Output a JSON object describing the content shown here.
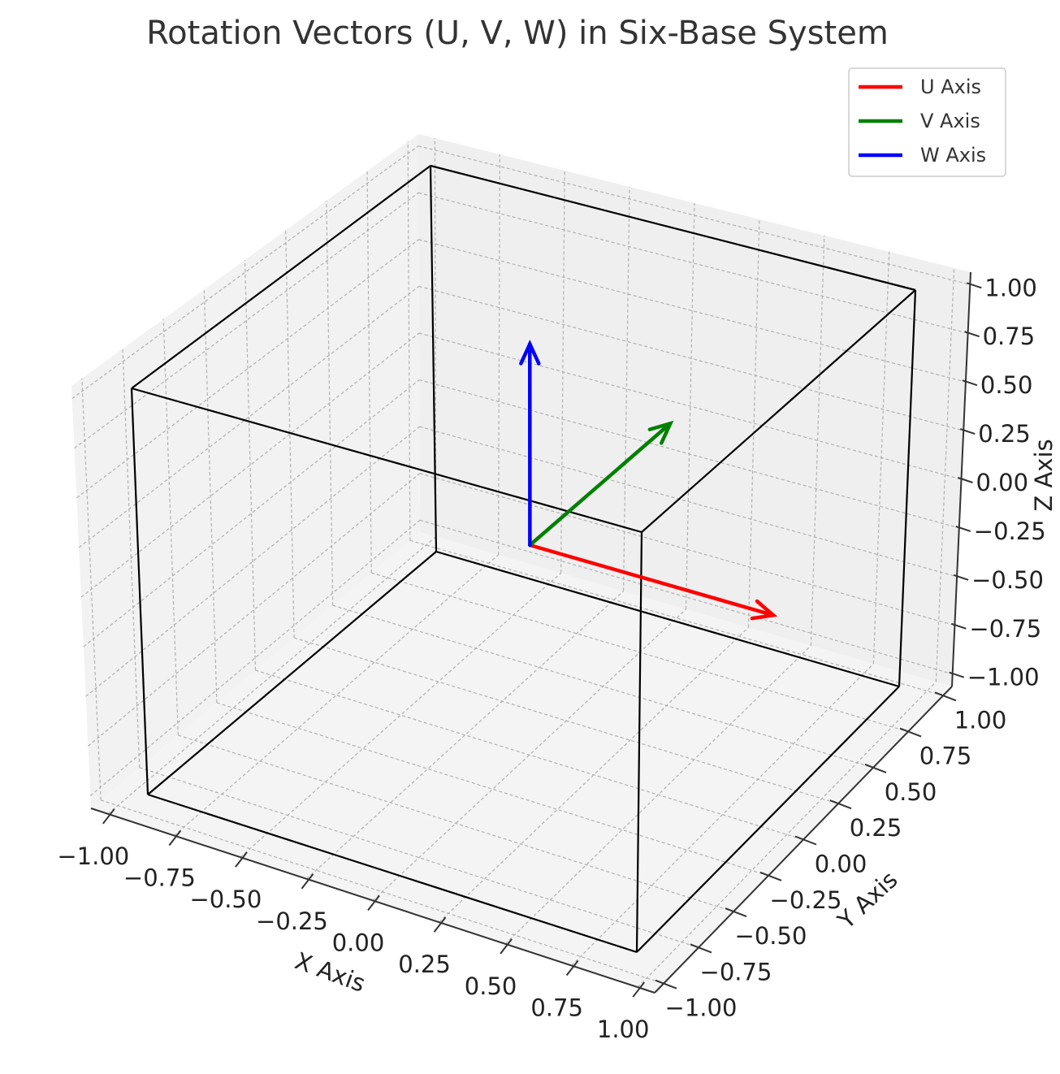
{
  "chart_data": {
    "type": "3d-quiver",
    "title": "Rotation Vectors (U, V, W) in Six-Base System",
    "xlabel": "X Axis",
    "ylabel": "Y Axis",
    "zlabel": "Z Axis",
    "xlim": [
      -1,
      1
    ],
    "ylim": [
      -1,
      1
    ],
    "zlim": [
      -1,
      1
    ],
    "x_ticks": [
      "−1.00",
      "−0.75",
      "−0.50",
      "−0.25",
      "0.00",
      "0.25",
      "0.50",
      "0.75",
      "1.00"
    ],
    "y_ticks": [
      "−1.00",
      "−0.75",
      "−0.50",
      "−0.25",
      "0.00",
      "0.25",
      "0.50",
      "0.75",
      "1.00"
    ],
    "z_ticks": [
      "−1.00",
      "−0.75",
      "−0.50",
      "−0.25",
      "0.00",
      "0.25",
      "0.50",
      "0.75",
      "1.00"
    ],
    "grid": true,
    "legend_position": "top-right",
    "origin": [
      0,
      0,
      0
    ],
    "series": [
      {
        "name": "U Axis",
        "color": "#ff0000",
        "vector": [
          1,
          0,
          0
        ]
      },
      {
        "name": "V Axis",
        "color": "#008000",
        "vector": [
          0,
          1,
          0
        ]
      },
      {
        "name": "W Axis",
        "color": "#0000ff",
        "vector": [
          0,
          0,
          1
        ]
      }
    ],
    "cube": {
      "color": "#000000",
      "min": -1,
      "max": 1
    }
  }
}
